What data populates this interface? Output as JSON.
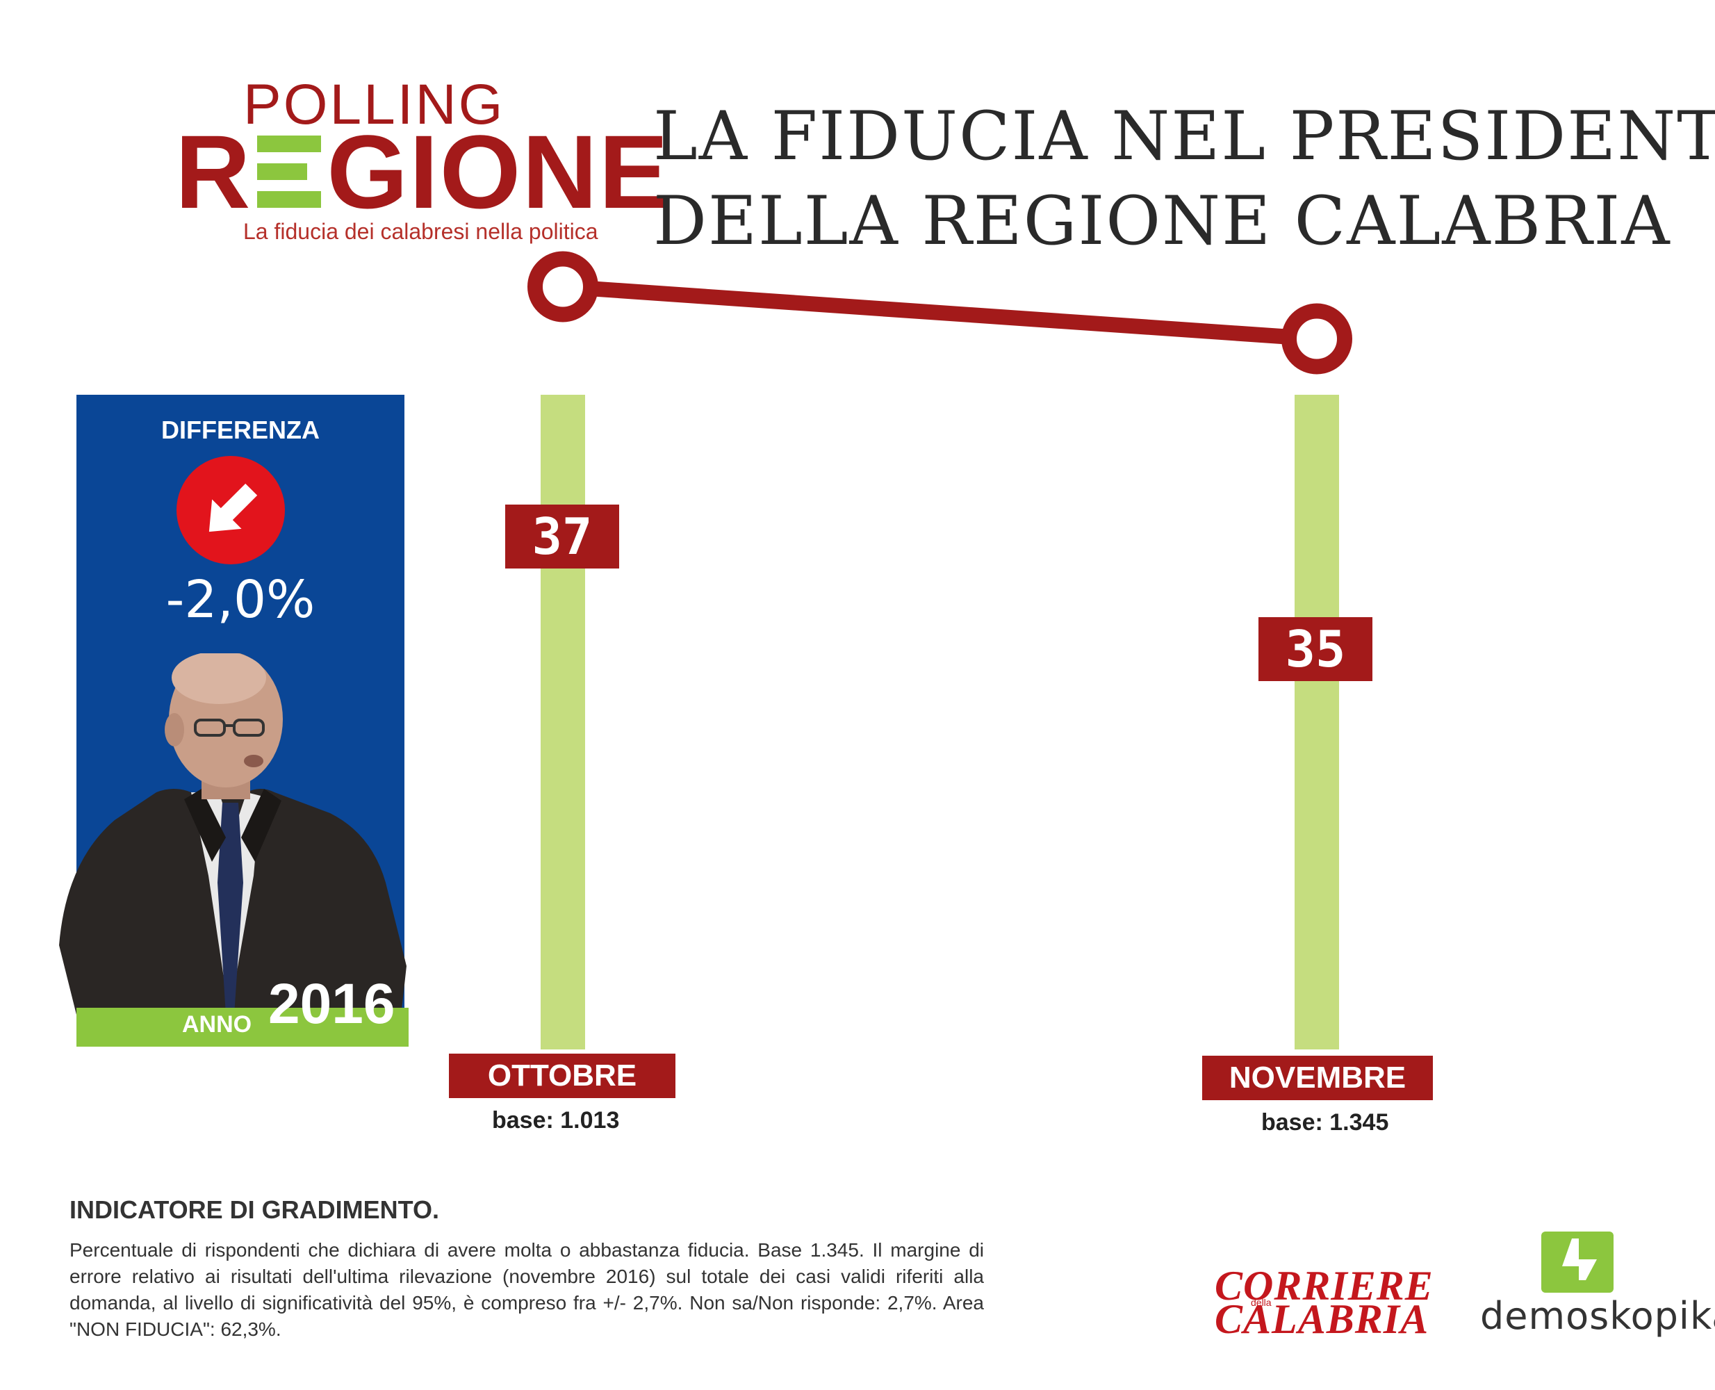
{
  "header": {
    "logo_top": "POLLING",
    "logo_r": "R",
    "logo_rest": "GIONE",
    "logo_subtitle": "La fiducia dei calabresi nella politica",
    "title_line1": "LA FIDUCIA NEL PRESIDENTE",
    "title_line2": "DELLA REGIONE CALABRIA"
  },
  "panel": {
    "diff_label": "DIFFERENZA",
    "diff_value": "-2,0%",
    "anno_word": "ANNO",
    "anno_year": "2016",
    "icon": "arrow-down-right-icon"
  },
  "chart_data": {
    "type": "line",
    "categories": [
      "OTTOBRE",
      "NOVEMBRE"
    ],
    "values": [
      37,
      35
    ],
    "value_labels": [
      "37",
      "35"
    ],
    "bases": [
      "base: 1.013",
      "base: 1.345"
    ],
    "ylim": [
      0,
      45
    ]
  },
  "footer": {
    "title": "INDICATORE DI GRADIMENTO.",
    "description": "Percentuale di rispondenti che dichiara di avere molta o abbastanza fiducia. Base 1.345. Il margine di errore relativo ai risultati dell'ultima rilevazione (novembre 2016) sul totale dei casi validi riferiti alla domanda, al livello di significatività del 95%, è compreso fra +/- 2,7%. Non sa/Non risponde: 2,7%. Area \"NON FIDUCIA\": 62,3%.",
    "corriere_top": "CORRIERE",
    "corriere_della": "della",
    "corriere_bottom": "CALABRIA",
    "demoskopika": "demoskopika"
  },
  "colors": {
    "brand_red": "#a31a1a",
    "accent_green": "#8cc63e",
    "stripe_green": "#c5dd7f",
    "panel_blue": "#0a4696",
    "circle_red": "#e2141c"
  }
}
